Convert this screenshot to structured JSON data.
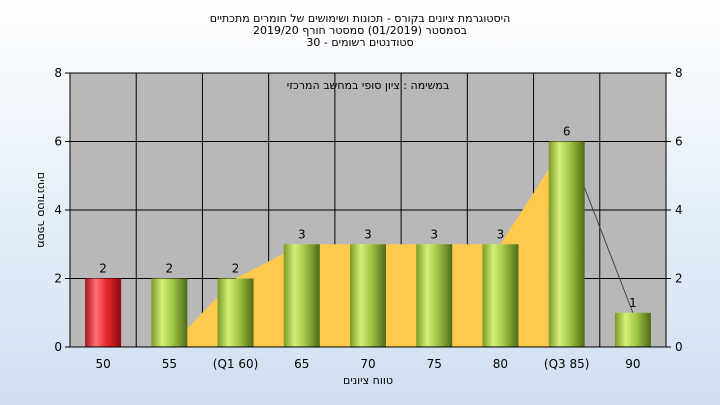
{
  "chart_data": {
    "type": "bar",
    "title_lines": [
      "היסטוגרמת ציונים בקורס - תכונות ושימושים של חומרים מתכתיים",
      "בסמסטר  (01/2019)  סמסטר חורף  2019/20",
      "סטודנטים רשומים - 30"
    ],
    "annotation": "במשימה : ציון סופי במחשב המרכזי",
    "xlabel": "טווח ציונים",
    "ylabel": "מספר סטודנטים",
    "categories": [
      "50",
      "55",
      "(Q1 60)",
      "65",
      "70",
      "75",
      "80",
      "(Q3 85)",
      "90"
    ],
    "values": [
      2,
      2,
      2,
      3,
      3,
      3,
      3,
      6,
      1
    ],
    "data_labels": [
      "2",
      "2",
      "2",
      "3",
      "3",
      "3",
      "3",
      "6",
      "1"
    ],
    "ylim": [
      0,
      8
    ],
    "yticks": [
      "0",
      "2",
      "4",
      "6",
      "8"
    ],
    "grid": true,
    "highlight_index": 0,
    "colors": {
      "bar": "#9ccc3c",
      "bar_highlight": "#e8262c",
      "area": "#ffc94d",
      "plot_bg": "#b8b8b8",
      "grid": "#000000",
      "trend_line": "#444444"
    }
  }
}
